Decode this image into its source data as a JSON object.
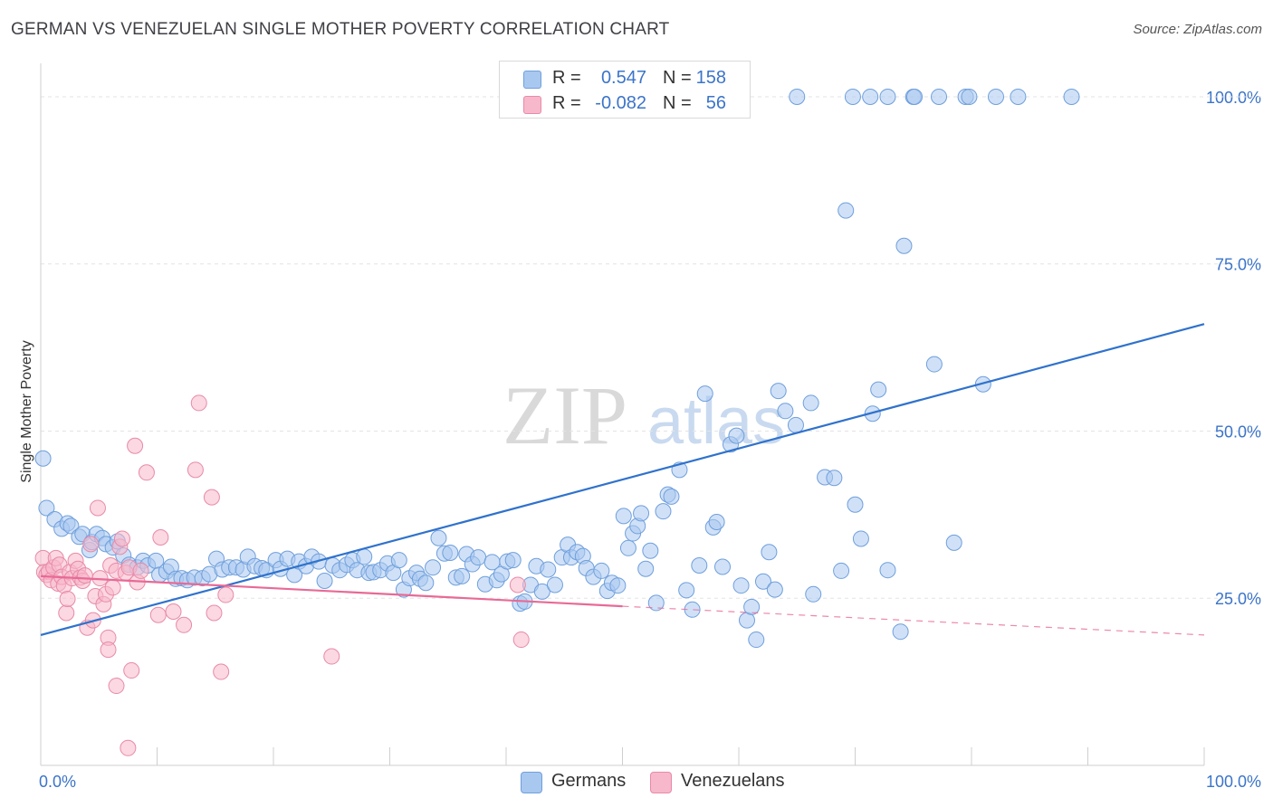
{
  "title": "GERMAN VS VENEZUELAN SINGLE MOTHER POVERTY CORRELATION CHART",
  "source": "Source: ZipAtlas.com",
  "watermark": {
    "zip": "ZIP",
    "atlas": "atlas"
  },
  "legend": {
    "rows": [
      {
        "r_label": "R =",
        "r_value": "0.547",
        "n_label": "N =",
        "n_value": "158",
        "color": "#a9c8f0"
      },
      {
        "r_label": "R =",
        "r_value": "-0.082",
        "n_label": "N =",
        "n_value": "56",
        "color": "#f7b8cb"
      }
    ]
  },
  "bottom_legend": [
    {
      "label": "Germans",
      "color": "#a9c8f0"
    },
    {
      "label": "Venezuelans",
      "color": "#f7b8cb"
    }
  ],
  "chart_data": {
    "type": "scatter",
    "ylabel": "Single Mother Poverty",
    "xlim": [
      0,
      100
    ],
    "ylim": [
      0,
      105
    ],
    "x_tick_labels": [
      "0.0%",
      "100.0%"
    ],
    "y_ticks": [
      {
        "value": 25,
        "label": "25.0%"
      },
      {
        "value": 50,
        "label": "50.0%"
      },
      {
        "value": 75,
        "label": "75.0%"
      },
      {
        "value": 100,
        "label": "100.0%"
      }
    ],
    "grid": true,
    "series": [
      {
        "name": "Germans",
        "color": "#a9c8f0",
        "stroke": "#6f9fdc",
        "line_color": "#2f72cc",
        "trend": {
          "x": [
            0,
            100
          ],
          "y": [
            19.5,
            66
          ]
        },
        "points": [
          [
            0.2,
            45.9
          ],
          [
            0.5,
            38.5
          ],
          [
            1.2,
            36.8
          ],
          [
            1.8,
            35.4
          ],
          [
            2.3,
            36.2
          ],
          [
            2.6,
            35.8
          ],
          [
            3.3,
            34.2
          ],
          [
            3.6,
            34.6
          ],
          [
            4.2,
            32.2
          ],
          [
            4.4,
            33.4
          ],
          [
            4.8,
            34.6
          ],
          [
            5.3,
            34.0
          ],
          [
            5.6,
            33.1
          ],
          [
            6.2,
            32.6
          ],
          [
            6.6,
            33.5
          ],
          [
            7.1,
            31.4
          ],
          [
            7.6,
            30.0
          ],
          [
            8.3,
            29.6
          ],
          [
            8.8,
            30.6
          ],
          [
            9.2,
            29.9
          ],
          [
            9.9,
            30.6
          ],
          [
            10.2,
            28.5
          ],
          [
            10.8,
            29.0
          ],
          [
            11.2,
            29.7
          ],
          [
            11.6,
            27.9
          ],
          [
            12.1,
            28.0
          ],
          [
            12.6,
            27.7
          ],
          [
            13.2,
            28.1
          ],
          [
            13.9,
            28.0
          ],
          [
            14.5,
            28.6
          ],
          [
            15.1,
            30.9
          ],
          [
            15.6,
            29.3
          ],
          [
            16.2,
            29.6
          ],
          [
            16.8,
            29.6
          ],
          [
            17.4,
            29.3
          ],
          [
            17.8,
            31.2
          ],
          [
            18.4,
            29.8
          ],
          [
            19.0,
            29.5
          ],
          [
            19.4,
            29.2
          ],
          [
            20.2,
            30.7
          ],
          [
            20.6,
            29.4
          ],
          [
            21.2,
            30.9
          ],
          [
            21.8,
            28.5
          ],
          [
            22.2,
            30.5
          ],
          [
            22.8,
            29.8
          ],
          [
            23.3,
            31.2
          ],
          [
            23.9,
            30.5
          ],
          [
            24.4,
            27.6
          ],
          [
            25.1,
            29.9
          ],
          [
            25.7,
            29.2
          ],
          [
            26.3,
            30.0
          ],
          [
            26.8,
            30.7
          ],
          [
            27.2,
            29.2
          ],
          [
            27.8,
            31.2
          ],
          [
            28.2,
            28.8
          ],
          [
            28.6,
            28.9
          ],
          [
            29.2,
            29.2
          ],
          [
            29.8,
            30.2
          ],
          [
            30.3,
            28.8
          ],
          [
            30.8,
            30.7
          ],
          [
            31.2,
            26.3
          ],
          [
            31.7,
            28.0
          ],
          [
            32.3,
            28.8
          ],
          [
            32.6,
            27.9
          ],
          [
            33.1,
            27.3
          ],
          [
            33.7,
            29.6
          ],
          [
            34.2,
            34.0
          ],
          [
            34.7,
            31.7
          ],
          [
            35.2,
            31.8
          ],
          [
            35.7,
            28.1
          ],
          [
            36.2,
            28.3
          ],
          [
            36.6,
            31.6
          ],
          [
            37.1,
            30.1
          ],
          [
            37.6,
            31.1
          ],
          [
            38.2,
            27.1
          ],
          [
            38.8,
            30.4
          ],
          [
            39.2,
            27.7
          ],
          [
            39.6,
            28.6
          ],
          [
            40.1,
            30.5
          ],
          [
            40.6,
            30.7
          ],
          [
            41.2,
            24.2
          ],
          [
            41.6,
            24.5
          ],
          [
            42.1,
            27.0
          ],
          [
            42.6,
            29.8
          ],
          [
            43.1,
            26.0
          ],
          [
            43.6,
            29.3
          ],
          [
            44.2,
            27.0
          ],
          [
            44.8,
            31.1
          ],
          [
            45.3,
            33.0
          ],
          [
            45.6,
            31.1
          ],
          [
            46.1,
            31.9
          ],
          [
            46.6,
            31.3
          ],
          [
            46.9,
            29.5
          ],
          [
            47.5,
            28.2
          ],
          [
            48.2,
            29.1
          ],
          [
            48.7,
            26.1
          ],
          [
            49.1,
            27.3
          ],
          [
            49.6,
            26.9
          ],
          [
            50.1,
            37.3
          ],
          [
            50.5,
            32.5
          ],
          [
            50.9,
            34.7
          ],
          [
            51.3,
            35.8
          ],
          [
            51.6,
            37.7
          ],
          [
            52.0,
            29.4
          ],
          [
            52.4,
            32.1
          ],
          [
            52.9,
            24.3
          ],
          [
            53.5,
            38.0
          ],
          [
            53.9,
            40.5
          ],
          [
            54.2,
            40.2
          ],
          [
            54.9,
            44.2
          ],
          [
            55.5,
            26.2
          ],
          [
            56.0,
            23.3
          ],
          [
            56.6,
            29.9
          ],
          [
            57.1,
            55.6
          ],
          [
            57.8,
            35.6
          ],
          [
            58.1,
            36.4
          ],
          [
            58.6,
            29.7
          ],
          [
            59.3,
            48.0
          ],
          [
            59.8,
            49.3
          ],
          [
            60.2,
            26.9
          ],
          [
            60.7,
            21.7
          ],
          [
            61.1,
            23.7
          ],
          [
            61.5,
            18.8
          ],
          [
            62.1,
            27.5
          ],
          [
            62.6,
            31.9
          ],
          [
            63.1,
            26.3
          ],
          [
            63.4,
            56.0
          ],
          [
            64.0,
            53.0
          ],
          [
            64.9,
            50.9
          ],
          [
            66.2,
            54.2
          ],
          [
            66.4,
            25.6
          ],
          [
            67.4,
            43.1
          ],
          [
            68.2,
            43.0
          ],
          [
            68.8,
            29.1
          ],
          [
            69.2,
            83.0
          ],
          [
            70.0,
            39.0
          ],
          [
            70.5,
            33.9
          ],
          [
            71.5,
            52.6
          ],
          [
            72.0,
            56.2
          ],
          [
            72.8,
            29.2
          ],
          [
            73.9,
            20.0
          ],
          [
            74.2,
            77.7
          ],
          [
            76.8,
            60.0
          ],
          [
            78.5,
            33.3
          ],
          [
            81.0,
            57.0
          ],
          [
            65.0,
            100
          ],
          [
            69.8,
            100
          ],
          [
            71.3,
            100
          ],
          [
            72.8,
            100
          ],
          [
            75.0,
            100
          ],
          [
            75.1,
            100
          ],
          [
            77.2,
            100
          ],
          [
            79.5,
            100
          ],
          [
            79.8,
            100
          ],
          [
            82.1,
            100
          ],
          [
            84.0,
            100
          ],
          [
            88.6,
            100
          ]
        ]
      },
      {
        "name": "Venezuelans",
        "color": "#f7b8cb",
        "stroke": "#e88aa8",
        "line_color": "#e86a96",
        "trend": {
          "x": [
            0,
            50
          ],
          "y": [
            28.3,
            23.8
          ]
        },
        "trend_dashed": {
          "x": [
            50,
            100
          ],
          "y": [
            23.8,
            19.5
          ]
        },
        "points": [
          [
            0.2,
            31.0
          ],
          [
            0.3,
            28.9
          ],
          [
            0.5,
            28.5
          ],
          [
            0.7,
            29.0
          ],
          [
            0.9,
            27.7
          ],
          [
            1.1,
            29.6
          ],
          [
            1.3,
            31.0
          ],
          [
            1.5,
            27.2
          ],
          [
            1.6,
            30.0
          ],
          [
            1.8,
            28.2
          ],
          [
            2.0,
            26.9
          ],
          [
            2.2,
            22.8
          ],
          [
            2.3,
            24.9
          ],
          [
            2.5,
            28.9
          ],
          [
            2.7,
            28.0
          ],
          [
            3.0,
            30.6
          ],
          [
            3.2,
            29.4
          ],
          [
            3.4,
            28.1
          ],
          [
            3.6,
            27.6
          ],
          [
            3.8,
            28.4
          ],
          [
            4.0,
            20.6
          ],
          [
            4.3,
            33.1
          ],
          [
            4.5,
            21.7
          ],
          [
            4.7,
            25.3
          ],
          [
            4.9,
            38.5
          ],
          [
            5.1,
            28.0
          ],
          [
            5.4,
            24.1
          ],
          [
            5.6,
            25.6
          ],
          [
            5.8,
            19.1
          ],
          [
            6.0,
            29.9
          ],
          [
            6.2,
            26.6
          ],
          [
            6.5,
            29.1
          ],
          [
            6.8,
            32.7
          ],
          [
            7.0,
            33.9
          ],
          [
            7.3,
            28.8
          ],
          [
            7.6,
            29.6
          ],
          [
            7.8,
            14.2
          ],
          [
            8.1,
            47.8
          ],
          [
            8.3,
            27.4
          ],
          [
            8.6,
            29.1
          ],
          [
            9.1,
            43.8
          ],
          [
            10.1,
            22.5
          ],
          [
            10.3,
            34.1
          ],
          [
            11.4,
            23.0
          ],
          [
            12.3,
            21.0
          ],
          [
            13.3,
            44.2
          ],
          [
            13.6,
            54.2
          ],
          [
            14.7,
            40.1
          ],
          [
            14.9,
            22.8
          ],
          [
            15.5,
            14.0
          ],
          [
            15.9,
            25.5
          ],
          [
            25.0,
            16.3
          ],
          [
            41.0,
            27.0
          ],
          [
            41.3,
            18.8
          ],
          [
            6.5,
            11.9
          ],
          [
            7.5,
            2.6
          ],
          [
            5.8,
            17.3
          ]
        ]
      }
    ]
  }
}
